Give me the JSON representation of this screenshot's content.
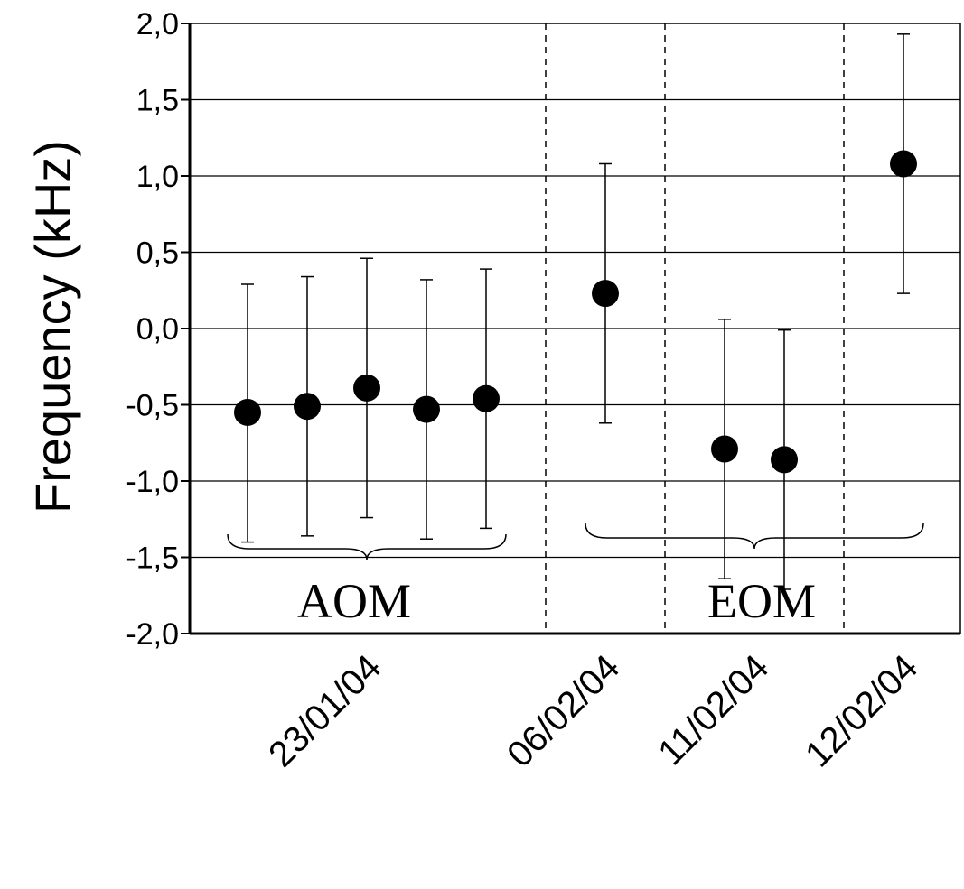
{
  "chart_data": {
    "type": "scatter",
    "title": "",
    "xlabel": "",
    "ylabel": "Frequency (kHz)",
    "ylim": [
      -2.0,
      2.0
    ],
    "yticks": [
      "2,0",
      "1,5",
      "1,0",
      "0,5",
      "0,0",
      "-0,5",
      "-1,0",
      "-1,5",
      "-2,0"
    ],
    "ytick_values": [
      2.0,
      1.5,
      1.0,
      0.5,
      0.0,
      -0.5,
      -1.0,
      -1.5,
      -2.0
    ],
    "grid": "horizontal",
    "points": [
      {
        "index": 1,
        "y": -0.55,
        "low": -1.4,
        "high": 0.29
      },
      {
        "index": 2,
        "y": -0.51,
        "low": -1.36,
        "high": 0.34
      },
      {
        "index": 3,
        "y": -0.39,
        "low": -1.24,
        "high": 0.46
      },
      {
        "index": 4,
        "y": -0.53,
        "low": -1.38,
        "high": 0.32
      },
      {
        "index": 5,
        "y": -0.46,
        "low": -1.31,
        "high": 0.39
      },
      {
        "index": 7,
        "y": 0.23,
        "low": -0.62,
        "high": 1.08
      },
      {
        "index": 9,
        "y": -0.79,
        "low": -1.64,
        "high": 0.06
      },
      {
        "index": 10,
        "y": -0.86,
        "low": -1.71,
        "high": -0.01
      },
      {
        "index": 12,
        "y": 1.08,
        "low": 0.23,
        "high": 1.93
      }
    ],
    "date_labels": [
      {
        "text": "23/01/04",
        "index": 3
      },
      {
        "text": "06/02/04",
        "index": 7
      },
      {
        "text": "11/02/04",
        "index": 9.5
      },
      {
        "text": "12/02/04",
        "index": 12
      }
    ],
    "dashed_separators": [
      6,
      8,
      11
    ],
    "groups": [
      {
        "label": "AOM",
        "from": 1,
        "to": 5
      },
      {
        "label": "EOM",
        "from": 7,
        "to": 12
      }
    ]
  }
}
